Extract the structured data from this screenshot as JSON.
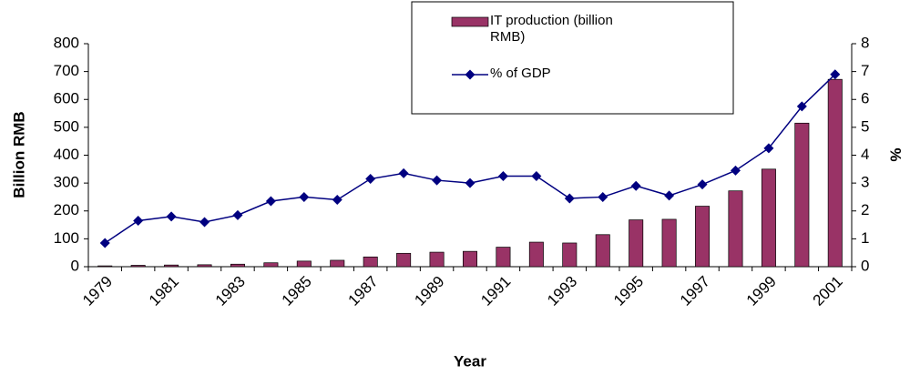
{
  "chart_data": {
    "type": "bar_line",
    "xlabel": "Year",
    "ylabel": "Billion RMB",
    "y2label": "%",
    "categories": [
      "1979",
      null,
      "1981",
      null,
      "1983",
      null,
      "1985",
      null,
      "1987",
      null,
      "1989",
      null,
      "1991",
      null,
      "1993",
      null,
      "1995",
      null,
      "1997",
      null,
      "1999",
      null,
      "2001"
    ],
    "series": [
      {
        "name": "IT production (billion RMB)",
        "type": "bar",
        "color": "#993366",
        "values": [
          3,
          5,
          6,
          7,
          9,
          14,
          20,
          23,
          35,
          48,
          52,
          55,
          70,
          88,
          85,
          115,
          168,
          170,
          217,
          272,
          350,
          515,
          672
        ]
      },
      {
        "name": "% of GDP",
        "type": "line",
        "axis": "y2",
        "color": "#000080",
        "values": [
          0.85,
          1.65,
          1.8,
          1.6,
          1.85,
          2.35,
          2.5,
          2.4,
          3.15,
          3.35,
          3.1,
          3.0,
          3.25,
          3.25,
          2.45,
          2.5,
          2.9,
          2.55,
          2.95,
          3.45,
          4.25,
          5.75,
          6.9
        ]
      }
    ],
    "ylim": [
      0,
      800
    ],
    "yticks": [
      0,
      100,
      200,
      300,
      400,
      500,
      600,
      700,
      800
    ],
    "y2lim": [
      0,
      8
    ],
    "y2ticks": [
      0,
      1,
      2,
      3,
      4,
      5,
      6,
      7,
      8
    ],
    "legend": "top"
  }
}
